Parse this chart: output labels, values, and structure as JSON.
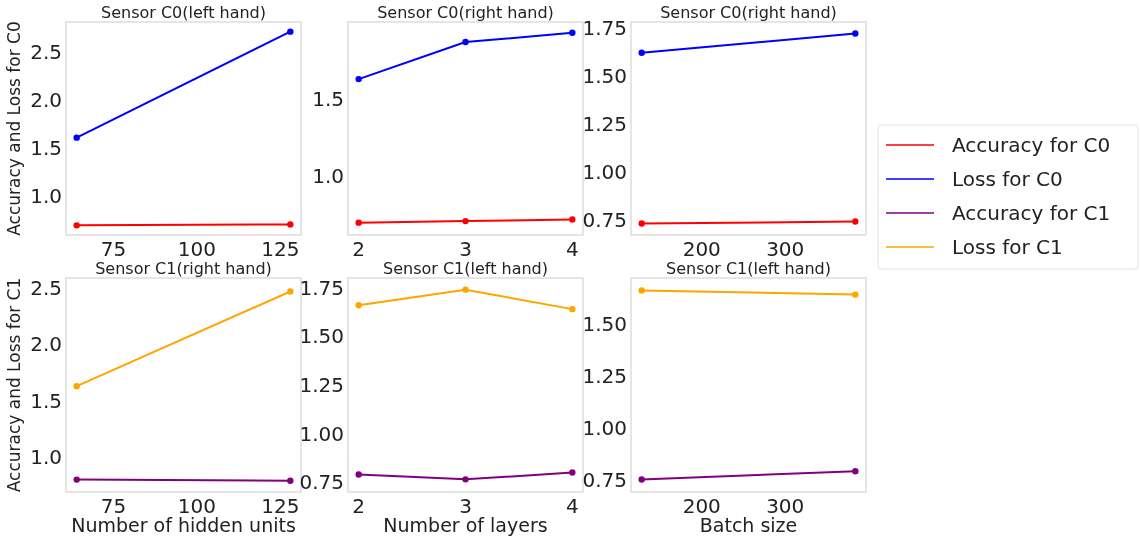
{
  "chart_data": [
    {
      "type": "line",
      "title": "Sensor C0(left hand)",
      "ylabel": "Accuracy and Loss for C0",
      "x": [
        64,
        128
      ],
      "xlim": [
        60.8,
        131.2
      ],
      "xticks": [
        75,
        100,
        125
      ],
      "ylim": [
        0.6,
        2.81
      ],
      "yticks": [
        {
          "value": 1.0,
          "label": "1.0"
        },
        {
          "value": 1.5,
          "label": "1.5"
        },
        {
          "value": 2.0,
          "label": "2.0"
        },
        {
          "value": 2.5,
          "label": "2.5"
        }
      ],
      "marker": "circle",
      "legend": "right",
      "series": [
        {
          "name": "Accuracy for C0",
          "color": "#ff0000",
          "values": [
            0.7,
            0.71
          ]
        },
        {
          "name": "Loss for C0",
          "color": "#0000ff",
          "values": [
            1.61,
            2.71
          ]
        }
      ]
    },
    {
      "type": "line",
      "title": "Sensor C0(right hand)",
      "x": [
        2,
        3,
        4
      ],
      "xlim": [
        1.9,
        4.1
      ],
      "xticks": [
        2,
        3,
        4
      ],
      "ylim": [
        0.62,
        2.0
      ],
      "yticks": [
        {
          "value": 1.0,
          "label": "1.0"
        },
        {
          "value": 1.5,
          "label": "1.5"
        }
      ],
      "marker": "circle",
      "series": [
        {
          "color": "#ff0000",
          "values": [
            0.7,
            0.71,
            0.72
          ]
        },
        {
          "color": "#0000ff",
          "values": [
            1.63,
            1.87,
            1.93
          ]
        }
      ]
    },
    {
      "type": "line",
      "title": "Sensor C0(right hand)",
      "x": [
        128,
        384
      ],
      "xlim": [
        115.2,
        396.8
      ],
      "xticks": [
        200,
        300
      ],
      "ylim": [
        0.67,
        1.78
      ],
      "yticks": [
        {
          "value": 0.75,
          "label": "0.75"
        },
        {
          "value": 1.0,
          "label": "1.00"
        },
        {
          "value": 1.25,
          "label": "1.25"
        },
        {
          "value": 1.5,
          "label": "1.50"
        },
        {
          "value": 1.75,
          "label": "1.75"
        }
      ],
      "marker": "circle",
      "series": [
        {
          "color": "#ff0000",
          "values": [
            0.73,
            0.74
          ]
        },
        {
          "color": "#0000ff",
          "values": [
            1.62,
            1.72
          ]
        }
      ]
    },
    {
      "type": "line",
      "title": "Sensor C1(right hand)",
      "xlabel": "Number of hidden units",
      "ylabel": "Accuracy and Loss for C1",
      "x": [
        64,
        128
      ],
      "xlim": [
        60.8,
        131.2
      ],
      "xticks": [
        75,
        100,
        125
      ],
      "ylim": [
        0.69,
        2.59
      ],
      "yticks": [
        {
          "value": 1.0,
          "label": "1.0"
        },
        {
          "value": 1.5,
          "label": "1.5"
        },
        {
          "value": 2.0,
          "label": "2.0"
        },
        {
          "value": 2.5,
          "label": "2.5"
        }
      ],
      "marker": "circle",
      "legend": "right",
      "series": [
        {
          "name": "Accuracy for C1",
          "color": "#800080",
          "values": [
            0.8,
            0.79
          ]
        },
        {
          "name": "Loss for C1",
          "color": "#ffa500",
          "values": [
            1.63,
            2.47
          ]
        }
      ]
    },
    {
      "type": "line",
      "title": "Sensor C1(left hand)",
      "xlabel": "Number of layers",
      "x": [
        2,
        3,
        4
      ],
      "xlim": [
        1.9,
        4.1
      ],
      "xticks": [
        2,
        3,
        4
      ],
      "ylim": [
        0.7,
        1.8
      ],
      "yticks": [
        {
          "value": 0.75,
          "label": "0.75"
        },
        {
          "value": 1.0,
          "label": "1.00"
        },
        {
          "value": 1.25,
          "label": "1.25"
        },
        {
          "value": 1.5,
          "label": "1.50"
        },
        {
          "value": 1.75,
          "label": "1.75"
        }
      ],
      "marker": "circle",
      "series": [
        {
          "color": "#800080",
          "values": [
            0.79,
            0.765,
            0.8
          ]
        },
        {
          "color": "#ffa500",
          "values": [
            1.66,
            1.74,
            1.64
          ]
        }
      ]
    },
    {
      "type": "line",
      "title": "Sensor C1(left hand)",
      "xlabel": "Batch size",
      "x": [
        128,
        384
      ],
      "xlim": [
        115.2,
        396.8
      ],
      "xticks": [
        200,
        300
      ],
      "ylim": [
        0.69,
        1.72
      ],
      "yticks": [
        {
          "value": 0.75,
          "label": "0.75"
        },
        {
          "value": 1.0,
          "label": "1.00"
        },
        {
          "value": 1.25,
          "label": "1.25"
        },
        {
          "value": 1.5,
          "label": "1.50"
        }
      ],
      "marker": "circle",
      "series": [
        {
          "color": "#800080",
          "values": [
            0.75,
            0.79
          ]
        },
        {
          "color": "#ffa500",
          "values": [
            1.66,
            1.64
          ]
        }
      ]
    }
  ]
}
